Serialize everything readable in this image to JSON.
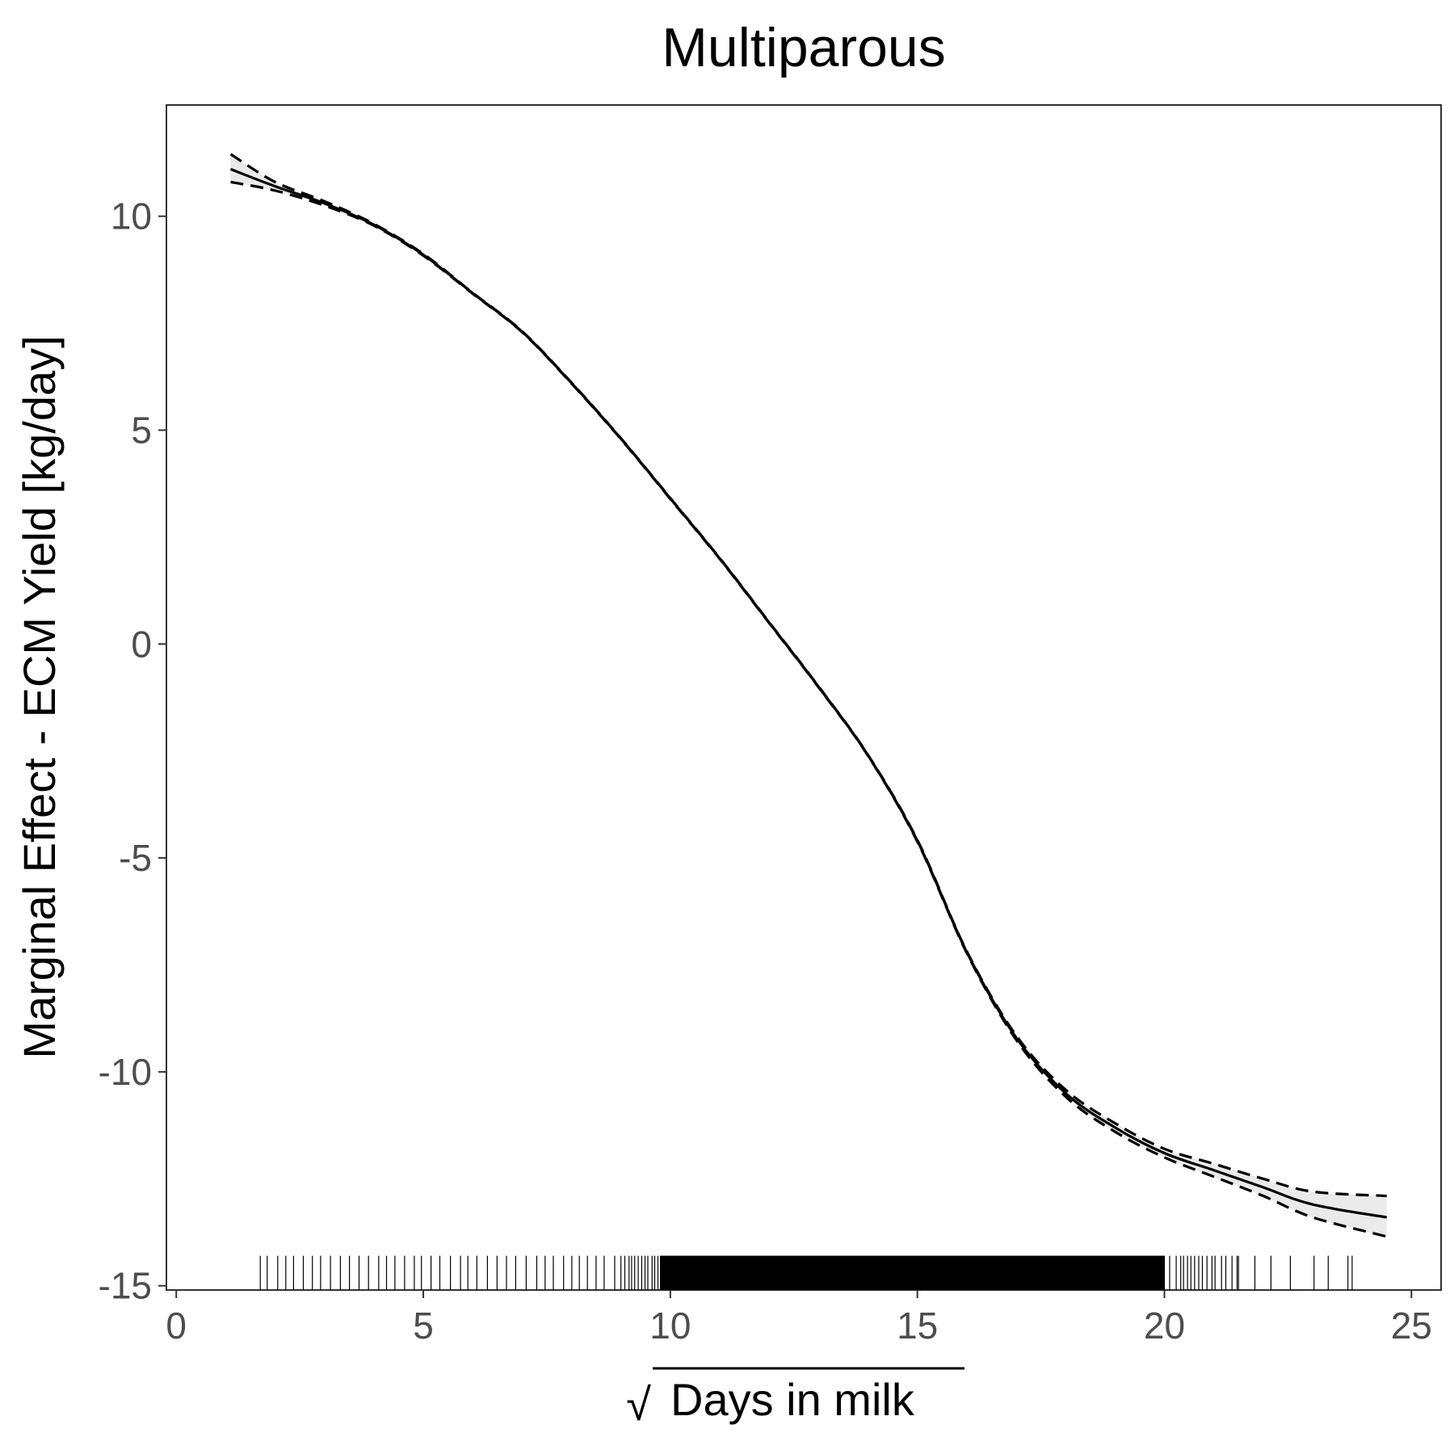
{
  "chart_data": {
    "type": "line",
    "title": "Multiparous",
    "xlabel_radical": "√",
    "xlabel": "Days in milk",
    "ylabel": "Marginal Effect - ECM Yield [kg/day]",
    "xlim": [
      -0.2,
      25.6
    ],
    "ylim": [
      -15.1,
      12.6
    ],
    "x_ticks": [
      0,
      5,
      10,
      15,
      20,
      25
    ],
    "x_tick_labels": [
      "0",
      "5",
      "10",
      "15",
      "20",
      "25"
    ],
    "y_ticks": [
      -15,
      -10,
      -5,
      0,
      5,
      10
    ],
    "y_tick_labels": [
      "-15",
      "-10",
      "-5",
      "0",
      "5",
      "10"
    ],
    "grid": false,
    "series": [
      {
        "role": "fit",
        "x": [
          1.1,
          2,
          3,
          4,
          5,
          6,
          7,
          8,
          9,
          10,
          11,
          12,
          13,
          14,
          15,
          16,
          17,
          18,
          19,
          20,
          21,
          22,
          23,
          24.5
        ],
        "y": [
          11.1,
          10.7,
          10.3,
          9.8,
          9.1,
          8.2,
          7.3,
          6.1,
          4.8,
          3.4,
          2.0,
          0.5,
          -1.0,
          -2.6,
          -4.6,
          -7.2,
          -9.2,
          -10.5,
          -11.3,
          -11.9,
          -12.3,
          -12.7,
          -13.1,
          -13.4
        ],
        "ci_lower": [
          10.8,
          10.6,
          10.25,
          9.78,
          9.08,
          8.19,
          7.29,
          6.09,
          4.79,
          3.39,
          1.99,
          0.49,
          -1.01,
          -2.61,
          -4.62,
          -7.22,
          -9.25,
          -10.58,
          -11.4,
          -12.0,
          -12.45,
          -12.9,
          -13.4,
          -13.85
        ],
        "ci_upper": [
          11.45,
          10.8,
          10.35,
          9.82,
          9.12,
          8.21,
          7.31,
          6.11,
          4.81,
          3.41,
          2.01,
          0.51,
          -0.99,
          -2.59,
          -4.58,
          -7.18,
          -9.15,
          -10.42,
          -11.2,
          -11.8,
          -12.15,
          -12.5,
          -12.8,
          -12.9
        ]
      }
    ],
    "rug": {
      "axis": "x",
      "range": [
        1.7,
        23.8
      ],
      "dense_range": [
        9.8,
        20.0
      ]
    }
  }
}
